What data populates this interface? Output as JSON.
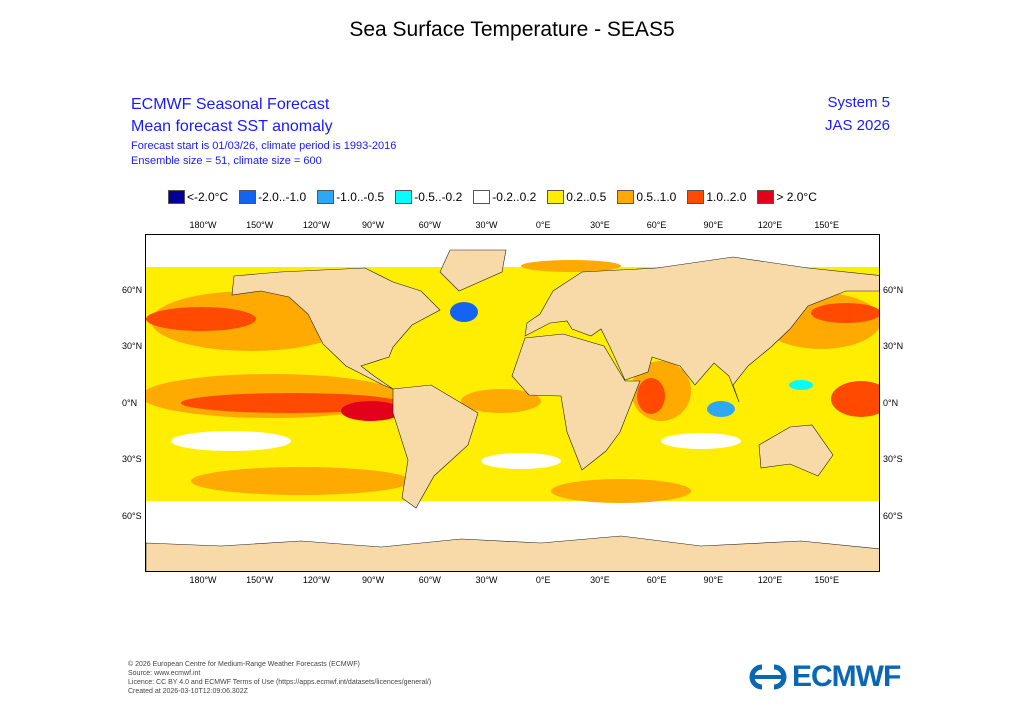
{
  "title": "Sea Surface Temperature - SEAS5",
  "header": {
    "line1": "ECMWF Seasonal Forecast",
    "line2": "Mean forecast SST anomaly",
    "line3": "Forecast start is 01/03/26, climate period is 1993-2016",
    "line4": "Ensemble size = 51, climate size = 600",
    "system": "System 5",
    "season": "JAS 2026"
  },
  "legend": [
    {
      "label": "<-2.0°C",
      "color": "#000099"
    },
    {
      "label": "-2.0..-1.0",
      "color": "#1464f4"
    },
    {
      "label": "-1.0..-0.5",
      "color": "#2ea8f5"
    },
    {
      "label": "-0.5..-0.2",
      "color": "#00ffff"
    },
    {
      "label": "-0.2..0.2",
      "color": "#ffffff"
    },
    {
      "label": "0.2..0.5",
      "color": "#ffee00"
    },
    {
      "label": "0.5..1.0",
      "color": "#ffaa00"
    },
    {
      "label": "1.0..2.0",
      "color": "#ff4a00"
    },
    {
      "label": "> 2.0°C",
      "color": "#e3001b"
    }
  ],
  "lon_ticks": [
    "180°W",
    "150°W",
    "120°W",
    "90°W",
    "60°W",
    "30°W",
    "0°E",
    "30°E",
    "60°E",
    "90°E",
    "120°E",
    "150°E"
  ],
  "lat_ticks": [
    "60°N",
    "30°N",
    "0°N",
    "30°S",
    "60°S"
  ],
  "land_color": "#f8d9a8",
  "footer": {
    "copyright": "© 2026 European Centre for Medium-Range Weather Forecasts (ECMWF)",
    "source": "Source: www.ecmwf.int",
    "licence": "Licence: CC BY 4.0 and ECMWF Terms of Use (https://apps.ecmwf.int/datasets/licences/general/)",
    "created": "Created at 2026-03-10T12:09:06.302Z"
  },
  "logo": "ECMWF"
}
